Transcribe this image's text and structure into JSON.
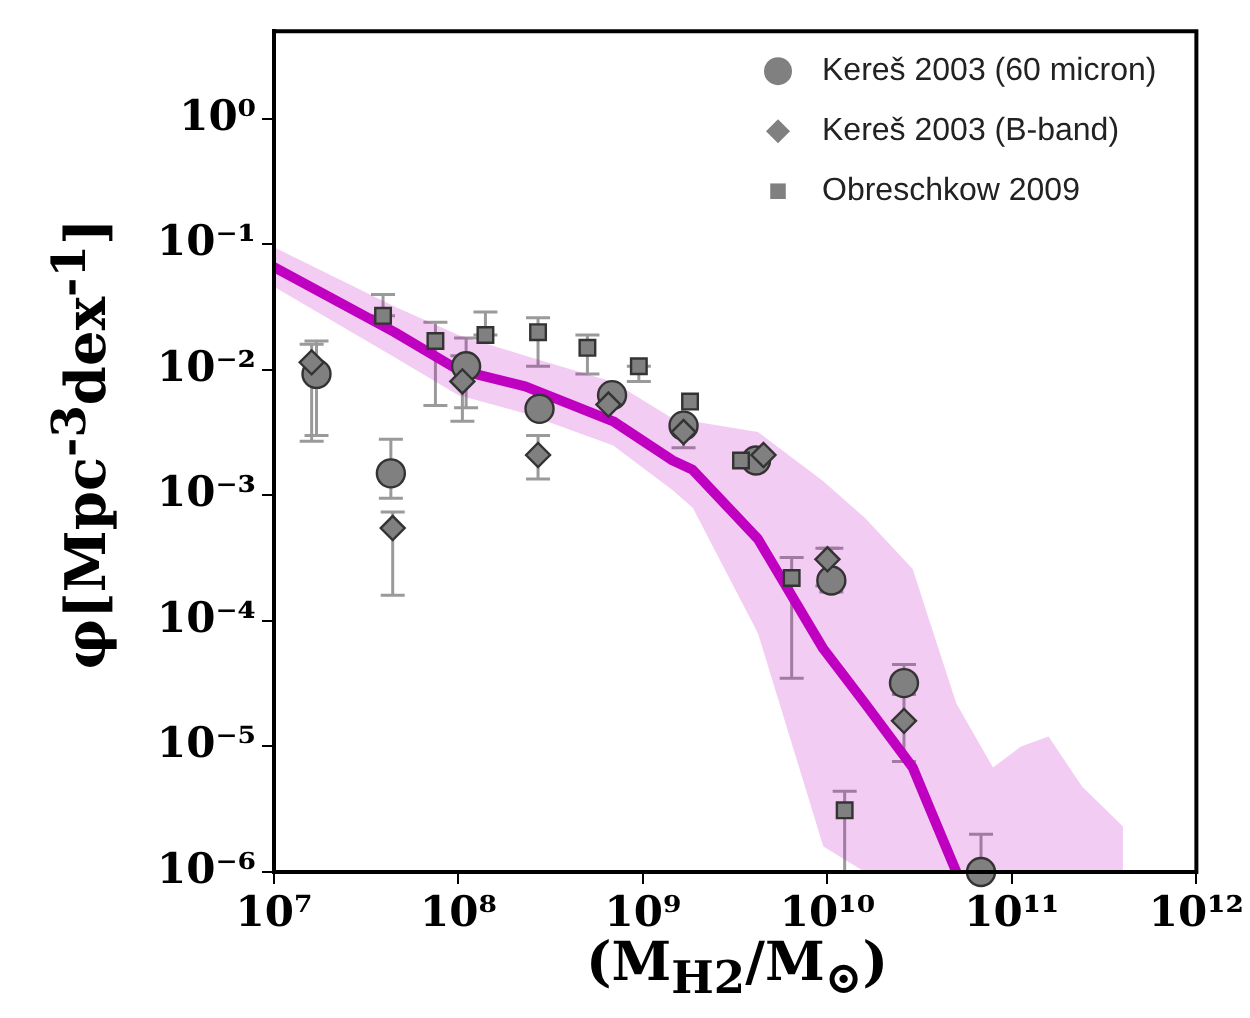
{
  "chart_data": {
    "type": "scatter",
    "xlabel": "(M$_{H2}$/M$_{⊙}$)",
    "ylabel": "φ[Mpc$^{-3}$dex$^{-1}$]",
    "log": "xy",
    "xlim": [
      10000000.0,
      1000000000000.0
    ],
    "ylim": [
      1e-06,
      5
    ],
    "xticks": [
      {
        "value": 10000000.0,
        "label": "10⁷"
      },
      {
        "value": 100000000.0,
        "label": "10⁸"
      },
      {
        "value": 1000000000.0,
        "label": "10⁹"
      },
      {
        "value": 10000000000.0,
        "label": "10¹⁰"
      },
      {
        "value": 100000000000.0,
        "label": "10¹¹"
      },
      {
        "value": 1000000000000.0,
        "label": "10¹²"
      }
    ],
    "yticks": [
      {
        "value": 1e-06,
        "label": "10⁻⁶"
      },
      {
        "value": 1e-05,
        "label": "10⁻⁵"
      },
      {
        "value": 0.0001,
        "label": "10⁻⁴"
      },
      {
        "value": 0.001,
        "label": "10⁻³"
      },
      {
        "value": 0.01,
        "label": "10⁻²"
      },
      {
        "value": 0.1,
        "label": "10⁻¹"
      },
      {
        "value": 1,
        "label": "10⁰"
      }
    ],
    "grid": false,
    "legend": "top right",
    "series": [
      {
        "type": "line",
        "color": "#c000c0",
        "marker": "none",
        "line_style": "solid",
        "x": [
          10000000.0,
          45000000.0,
          100000000.0,
          230000000.0,
          690000000.0,
          1450000000.0,
          1860000000.0,
          4200000000.0,
          9500000000.0,
          16000000000.0,
          29000000000.0,
          35000000000.0,
          50000000000.0,
          79000000000.0,
          112000000000.0,
          158000000000.0,
          240000000000.0,
          400000000000.0
        ],
        "values": [
          0.066,
          0.02,
          0.01,
          0.0074,
          0.0039,
          0.0019,
          0.0016,
          0.00045,
          6e-05,
          2.2e-05,
          6.8e-06,
          3.5e-06,
          1e-06,
          null,
          null,
          null,
          null,
          null
        ],
        "upper": [
          0.095,
          0.032,
          0.019,
          0.013,
          0.008,
          0.0041,
          0.0039,
          0.0032,
          0.0013,
          0.00066,
          0.00026,
          0.00011,
          2.2e-05,
          6.8e-06,
          1e-05,
          1.2e-05,
          4.8e-06,
          2.3e-06
        ],
        "lower": [
          0.046,
          0.0126,
          0.0063,
          0.0045,
          0.0025,
          0.0011,
          0.0008,
          8e-05,
          1.6e-06,
          1e-06,
          1e-06,
          1e-06,
          1e-06,
          1e-06,
          1e-06,
          1e-06,
          1e-06,
          1e-06
        ]
      },
      {
        "name": "Kereš 2003 (60 micron)",
        "type": "scatter",
        "marker": "circle",
        "color": "#808080",
        "x": [
          17000000.0,
          43000000.0,
          110000000.0,
          275000000.0,
          680000000.0,
          1660000000.0,
          4100000000.0,
          10500000000.0,
          26000000000.0,
          68000000000.0
        ],
        "values": [
          0.0093,
          0.0015,
          0.0107,
          0.0049,
          0.0063,
          0.0036,
          0.0019,
          0.00021,
          3.2e-05,
          1e-06
        ],
        "errors": [
          [
            0.003,
            0.017
          ],
          [
            0.00095,
            0.0028
          ],
          [
            0.005,
            0.018
          ],
          null,
          null,
          null,
          null,
          [
            0.00017,
            0.00038
          ],
          [
            2.6e-05,
            4.5e-05
          ],
          [
            1e-06,
            2e-06
          ]
        ]
      },
      {
        "name": "Kereš 2003 (B-band)",
        "type": "scatter",
        "marker": "diamond",
        "color": "#808080",
        "x": [
          16000000.0,
          44000000.0,
          105000000.0,
          270000000.0,
          650000000.0,
          1660000000.0,
          4500000000.0,
          10000000000.0,
          26000000000.0
        ],
        "values": [
          0.0115,
          0.00055,
          0.0081,
          0.0021,
          0.0053,
          0.0032,
          0.0021,
          0.00031,
          1.6e-05
        ],
        "errors": [
          [
            0.0027,
            0.016
          ],
          [
            0.00016,
            0.00074
          ],
          [
            0.0039,
            0.013
          ],
          [
            0.00135,
            0.003
          ],
          null,
          [
            0.0024,
            0.004
          ],
          null,
          [
            0.00019,
            0.00038
          ],
          [
            7.6e-06,
            2.6e-05
          ]
        ]
      },
      {
        "name": "Obreschkow 2009",
        "type": "scatter",
        "marker": "square",
        "color": "#808080",
        "x": [
          39000000.0,
          75000000.0,
          140000000.0,
          270000000.0,
          500000000.0,
          950000000.0,
          1800000000.0,
          3400000000.0,
          6400000000.0,
          12400000000.0
        ],
        "values": [
          0.027,
          0.017,
          0.019,
          0.02,
          0.015,
          0.0107,
          0.0056,
          0.0019,
          0.00022,
          3.1e-06
        ],
        "errors": [
          [
            0.027,
            0.04
          ],
          [
            0.0052,
            0.024
          ],
          [
            0.019,
            0.029
          ],
          [
            0.0107,
            0.026
          ],
          [
            0.0093,
            0.019
          ],
          [
            0.0081,
            0.0107
          ],
          null,
          null,
          [
            3.5e-05,
            0.00032
          ],
          [
            1e-06,
            4.4e-06
          ]
        ]
      }
    ]
  }
}
